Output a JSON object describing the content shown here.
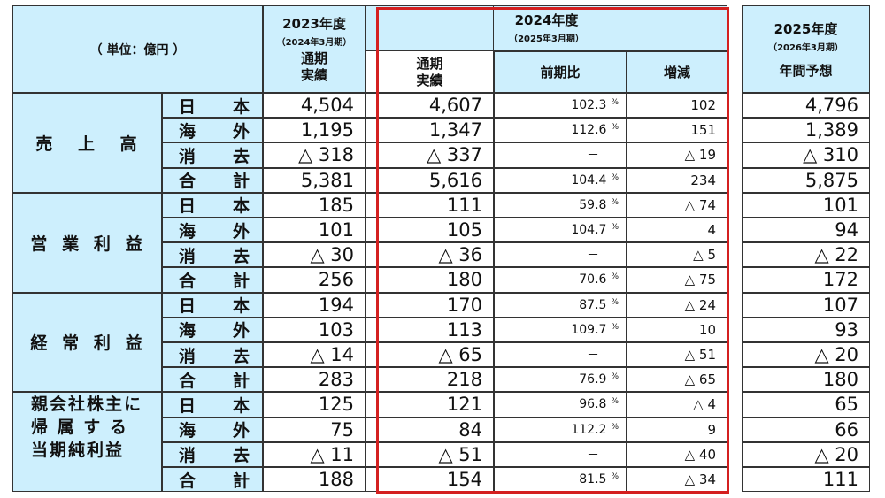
{
  "header": {
    "unit": "（ 単位：億円 ）",
    "fy2023": {
      "year": "2023年度",
      "period": "（2024年3月期）",
      "col": [
        "通期",
        "実績"
      ]
    },
    "fy2024": {
      "year": "2024年度",
      "period": "（2025年3月期）",
      "col_actual": [
        "通期",
        "実績"
      ],
      "col_ratio": "前期比",
      "col_change": "増減"
    },
    "fy2025": {
      "year": "2025年度",
      "period": "（2026年3月期）",
      "col": "年間予想"
    }
  },
  "percent_unit": "%",
  "dash": "－",
  "groups": [
    {
      "title": [
        "売",
        "上",
        "高"
      ],
      "rows": [
        {
          "region": [
            "日",
            "本"
          ],
          "fy2023": "4,504",
          "fy2024": "4,607",
          "ratio": "102.3",
          "change": "102",
          "fy2025": "4,796"
        },
        {
          "region": [
            "海",
            "外"
          ],
          "fy2023": "1,195",
          "fy2024": "1,347",
          "ratio": "112.6",
          "change": "151",
          "fy2025": "1,389"
        },
        {
          "region": [
            "消",
            "去"
          ],
          "fy2023": "△ 318",
          "fy2024": "△ 337",
          "ratio": "",
          "change": "△ 19",
          "fy2025": "△ 310"
        },
        {
          "region": [
            "合",
            "計"
          ],
          "fy2023": "5,381",
          "fy2024": "5,616",
          "ratio": "104.4",
          "change": "234",
          "fy2025": "5,875"
        }
      ]
    },
    {
      "title": [
        "営",
        "業",
        "利",
        "益"
      ],
      "rows": [
        {
          "region": [
            "日",
            "本"
          ],
          "fy2023": "185",
          "fy2024": "111",
          "ratio": "59.8",
          "change": "△ 74",
          "fy2025": "101"
        },
        {
          "region": [
            "海",
            "外"
          ],
          "fy2023": "101",
          "fy2024": "105",
          "ratio": "104.7",
          "change": "4",
          "fy2025": "94"
        },
        {
          "region": [
            "消",
            "去"
          ],
          "fy2023": "△ 30",
          "fy2024": "△ 36",
          "ratio": "",
          "change": "△ 5",
          "fy2025": "△ 22"
        },
        {
          "region": [
            "合",
            "計"
          ],
          "fy2023": "256",
          "fy2024": "180",
          "ratio": "70.6",
          "change": "△ 75",
          "fy2025": "172"
        }
      ]
    },
    {
      "title": [
        "経",
        "常",
        "利",
        "益"
      ],
      "rows": [
        {
          "region": [
            "日",
            "本"
          ],
          "fy2023": "194",
          "fy2024": "170",
          "ratio": "87.5",
          "change": "△ 24",
          "fy2025": "107"
        },
        {
          "region": [
            "海",
            "外"
          ],
          "fy2023": "103",
          "fy2024": "113",
          "ratio": "109.7",
          "change": "10",
          "fy2025": "93"
        },
        {
          "region": [
            "消",
            "去"
          ],
          "fy2023": "△ 14",
          "fy2024": "△ 65",
          "ratio": "",
          "change": "△ 51",
          "fy2025": "△ 20"
        },
        {
          "region": [
            "合",
            "計"
          ],
          "fy2023": "283",
          "fy2024": "218",
          "ratio": "76.9",
          "change": "△ 65",
          "fy2025": "180"
        }
      ]
    },
    {
      "title_lines": [
        "親会社株主に",
        "帰 属 す る",
        "当期純利益"
      ],
      "rows": [
        {
          "region": [
            "日",
            "本"
          ],
          "fy2023": "125",
          "fy2024": "121",
          "ratio": "96.8",
          "change": "△ 4",
          "fy2025": "65"
        },
        {
          "region": [
            "海",
            "外"
          ],
          "fy2023": "75",
          "fy2024": "84",
          "ratio": "112.2",
          "change": "9",
          "fy2025": "66"
        },
        {
          "region": [
            "消",
            "去"
          ],
          "fy2023": "△ 11",
          "fy2024": "△ 51",
          "ratio": "",
          "change": "△ 40",
          "fy2025": "△ 20"
        },
        {
          "region": [
            "合",
            "計"
          ],
          "fy2023": "188",
          "fy2024": "154",
          "ratio": "81.5",
          "change": "△ 34",
          "fy2025": "111"
        }
      ]
    }
  ],
  "colors": {
    "header_bg": "#cdeffd",
    "highlight_border": "#d42020",
    "grid": "#333333"
  }
}
